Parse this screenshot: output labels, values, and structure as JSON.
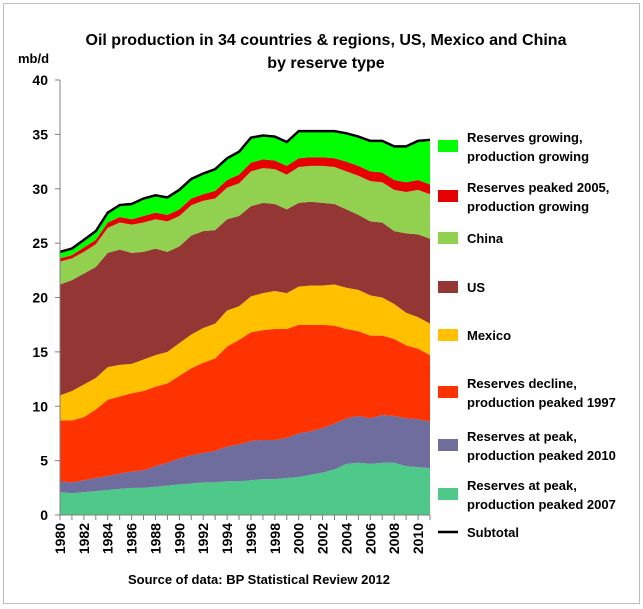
{
  "chart_data": {
    "type": "area",
    "title_line1": "Oil production in 34 countries & regions, US, Mexico and China",
    "title_line2": "by reserve type",
    "ylabel": "mb/d",
    "source": "Source of data: BP Statistical Review 2012",
    "ylim": [
      0,
      40
    ],
    "yticks": [
      "0",
      "5",
      "10",
      "15",
      "20",
      "25",
      "30",
      "35",
      "40"
    ],
    "x": [
      1980,
      1981,
      1982,
      1983,
      1984,
      1985,
      1986,
      1987,
      1988,
      1989,
      1990,
      1991,
      1992,
      1993,
      1994,
      1995,
      1996,
      1997,
      1998,
      1999,
      2000,
      2001,
      2002,
      2003,
      2004,
      2005,
      2006,
      2007,
      2008,
      2009,
      2010,
      2011
    ],
    "xticks": [
      "1980",
      "1982",
      "1984",
      "1986",
      "1988",
      "1990",
      "1992",
      "1994",
      "1996",
      "1998",
      "2000",
      "2002",
      "2004",
      "2006",
      "2008",
      "2010"
    ],
    "stacked": true,
    "series": [
      {
        "name": "Reserves at peak, production peaked 2007",
        "color": "#4ec98a",
        "values": [
          2.1,
          2.0,
          2.1,
          2.2,
          2.3,
          2.4,
          2.5,
          2.5,
          2.6,
          2.7,
          2.8,
          2.9,
          3.0,
          3.0,
          3.1,
          3.1,
          3.2,
          3.3,
          3.3,
          3.4,
          3.5,
          3.7,
          3.9,
          4.2,
          4.7,
          4.8,
          4.7,
          4.8,
          4.8,
          4.5,
          4.4,
          4.3
        ]
      },
      {
        "name": "Reserves at peak, production peaked 2010",
        "color": "#6e6d9e",
        "values": [
          1.0,
          1.0,
          1.1,
          1.2,
          1.3,
          1.4,
          1.5,
          1.6,
          1.9,
          2.1,
          2.4,
          2.6,
          2.7,
          2.9,
          3.2,
          3.4,
          3.6,
          3.6,
          3.6,
          3.7,
          4.0,
          4.0,
          4.1,
          4.2,
          4.2,
          4.3,
          4.2,
          4.4,
          4.3,
          4.4,
          4.4,
          4.3
        ]
      },
      {
        "name": "Reserves decline, production peaked 1997",
        "color": "#ff3300",
        "values": [
          5.6,
          5.7,
          5.8,
          6.3,
          7.0,
          7.1,
          7.2,
          7.3,
          7.3,
          7.3,
          7.6,
          8.0,
          8.3,
          8.5,
          9.2,
          9.6,
          10.0,
          10.1,
          10.2,
          10.0,
          10.0,
          9.8,
          9.5,
          9.0,
          8.2,
          7.8,
          7.6,
          7.3,
          7.1,
          6.7,
          6.5,
          6.1
        ]
      },
      {
        "name": "Mexico",
        "color": "#ffc000",
        "values": [
          2.3,
          2.7,
          3.0,
          2.9,
          3.0,
          2.9,
          2.7,
          2.9,
          2.9,
          2.9,
          3.0,
          3.1,
          3.2,
          3.2,
          3.3,
          3.1,
          3.3,
          3.4,
          3.5,
          3.3,
          3.5,
          3.6,
          3.6,
          3.8,
          3.8,
          3.8,
          3.7,
          3.5,
          3.2,
          3.0,
          2.9,
          2.9
        ]
      },
      {
        "name": "US",
        "color": "#943634",
        "values": [
          10.2,
          10.2,
          10.2,
          10.2,
          10.5,
          10.6,
          10.2,
          9.9,
          9.8,
          9.2,
          8.9,
          9.1,
          8.9,
          8.6,
          8.4,
          8.3,
          8.3,
          8.3,
          8.0,
          7.7,
          7.7,
          7.7,
          7.6,
          7.4,
          7.2,
          6.9,
          6.8,
          6.9,
          6.7,
          7.3,
          7.6,
          7.8
        ]
      },
      {
        "name": "China",
        "color": "#92d050",
        "values": [
          2.1,
          2.0,
          2.0,
          2.1,
          2.3,
          2.5,
          2.6,
          2.7,
          2.7,
          2.8,
          2.8,
          2.8,
          2.8,
          2.9,
          2.9,
          3.0,
          3.2,
          3.2,
          3.2,
          3.2,
          3.3,
          3.3,
          3.4,
          3.4,
          3.5,
          3.6,
          3.7,
          3.7,
          3.8,
          3.8,
          4.1,
          4.1
        ]
      },
      {
        "name": "Reserves peaked 2005, production growing",
        "color": "#e60000",
        "values": [
          0.3,
          0.3,
          0.4,
          0.4,
          0.5,
          0.5,
          0.5,
          0.6,
          0.6,
          0.6,
          0.6,
          0.6,
          0.6,
          0.7,
          0.7,
          0.8,
          0.8,
          0.8,
          0.8,
          0.8,
          0.8,
          0.8,
          0.8,
          0.8,
          0.9,
          0.9,
          0.9,
          0.9,
          0.9,
          0.9,
          0.9,
          0.9
        ]
      },
      {
        "name": "Reserves growing, production growing",
        "color": "#00ff00",
        "values": [
          0.6,
          0.6,
          0.7,
          0.8,
          0.9,
          1.1,
          1.4,
          1.6,
          1.6,
          1.6,
          1.8,
          1.8,
          1.9,
          2.0,
          2.0,
          2.1,
          2.3,
          2.2,
          2.2,
          2.2,
          2.5,
          2.4,
          2.4,
          2.5,
          2.6,
          2.7,
          2.8,
          2.9,
          3.1,
          3.3,
          3.6,
          4.1
        ]
      }
    ],
    "subtotal": {
      "name": "Subtotal",
      "color": "#000000"
    }
  }
}
